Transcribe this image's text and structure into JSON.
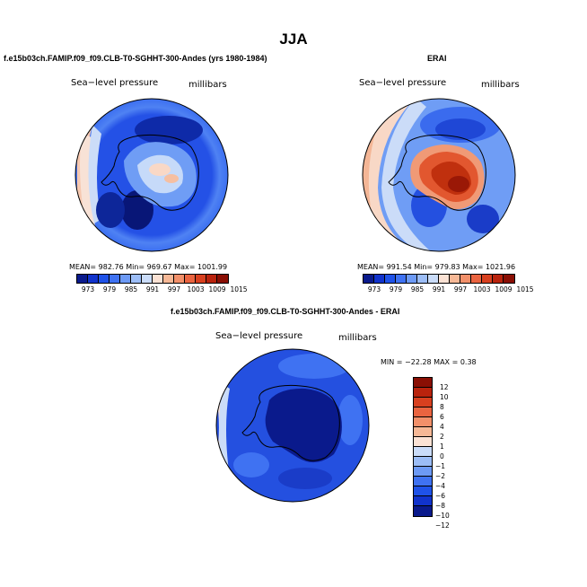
{
  "main_title": "JJA",
  "colors": {
    "abs_scale": [
      "#0a1a8c",
      "#1133cc",
      "#1f52e8",
      "#3f72f2",
      "#6d9af5",
      "#9cbdf6",
      "#cadcf9",
      "#fbe2d4",
      "#f6b896",
      "#f2906a",
      "#ea6440",
      "#d8401f",
      "#b9230d",
      "#8a0f04"
    ],
    "diff_scale": [
      "#0a1a8c",
      "#1133cc",
      "#1f52e8",
      "#3f72f2",
      "#6d9af5",
      "#9cbdf6",
      "#cadcf9",
      "#fbe2d4",
      "#f6b896",
      "#f2906a",
      "#ea6440",
      "#d8401f",
      "#b9230d",
      "#8a0f04"
    ]
  },
  "panels": {
    "model": {
      "title": "f.e15b03ch.FAMIP.f09_f09.CLB-T0-SGHHT-300-Andes (yrs 1980-1984)",
      "var_label": "Sea−level pressure",
      "units": "millibars",
      "stats": "MEAN= 982.76   Min= 969.67   Max= 1001.99"
    },
    "obs": {
      "title": "ERAI",
      "var_label": "Sea−level pressure",
      "units": "millibars",
      "stats": "MEAN= 991.54   Min= 979.83   Max= 1021.96"
    },
    "diff": {
      "title": "f.e15b03ch.FAMIP.f09_f09.CLB-T0-SGHHT-300-Andes - ERAI",
      "var_label": "Sea−level pressure",
      "units": "millibars",
      "stats": "MIN = −22.28  MAX =    0.38"
    }
  },
  "abs_tick_labels": [
    "973",
    "979",
    "985",
    "991",
    "997",
    "1003",
    "1009",
    "1015"
  ],
  "diff_tick_labels": [
    "12",
    "10",
    "8",
    "6",
    "4",
    "2",
    "1",
    "0",
    "−1",
    "−2",
    "−4",
    "−6",
    "−8",
    "−10",
    "−12"
  ],
  "chart_data": [
    {
      "type": "heatmap",
      "projection": "south-polar-stereographic",
      "title": "f.e15b03ch.FAMIP.f09_f09.CLB-T0-SGHHT-300-Andes (yrs 1980-1984)",
      "variable": "Sea-level pressure",
      "units": "millibars",
      "levels": [
        973,
        976,
        979,
        982,
        985,
        988,
        991,
        994,
        997,
        1000,
        1003,
        1006,
        1009,
        1012,
        1015
      ],
      "mean": 982.76,
      "min": 969.67,
      "max": 1001.99
    },
    {
      "type": "heatmap",
      "projection": "south-polar-stereographic",
      "title": "ERAI",
      "variable": "Sea-level pressure",
      "units": "millibars",
      "levels": [
        973,
        976,
        979,
        982,
        985,
        988,
        991,
        994,
        997,
        1000,
        1003,
        1006,
        1009,
        1012,
        1015
      ],
      "mean": 991.54,
      "min": 979.83,
      "max": 1021.96
    },
    {
      "type": "heatmap",
      "projection": "south-polar-stereographic",
      "title": "f.e15b03ch.FAMIP.f09_f09.CLB-T0-SGHHT-300-Andes - ERAI",
      "variable": "Sea-level pressure",
      "units": "millibars",
      "levels": [
        -12,
        -10,
        -8,
        -6,
        -4,
        -2,
        -1,
        0,
        1,
        2,
        4,
        6,
        8,
        10,
        12
      ],
      "min": -22.28,
      "max": 0.38
    }
  ]
}
